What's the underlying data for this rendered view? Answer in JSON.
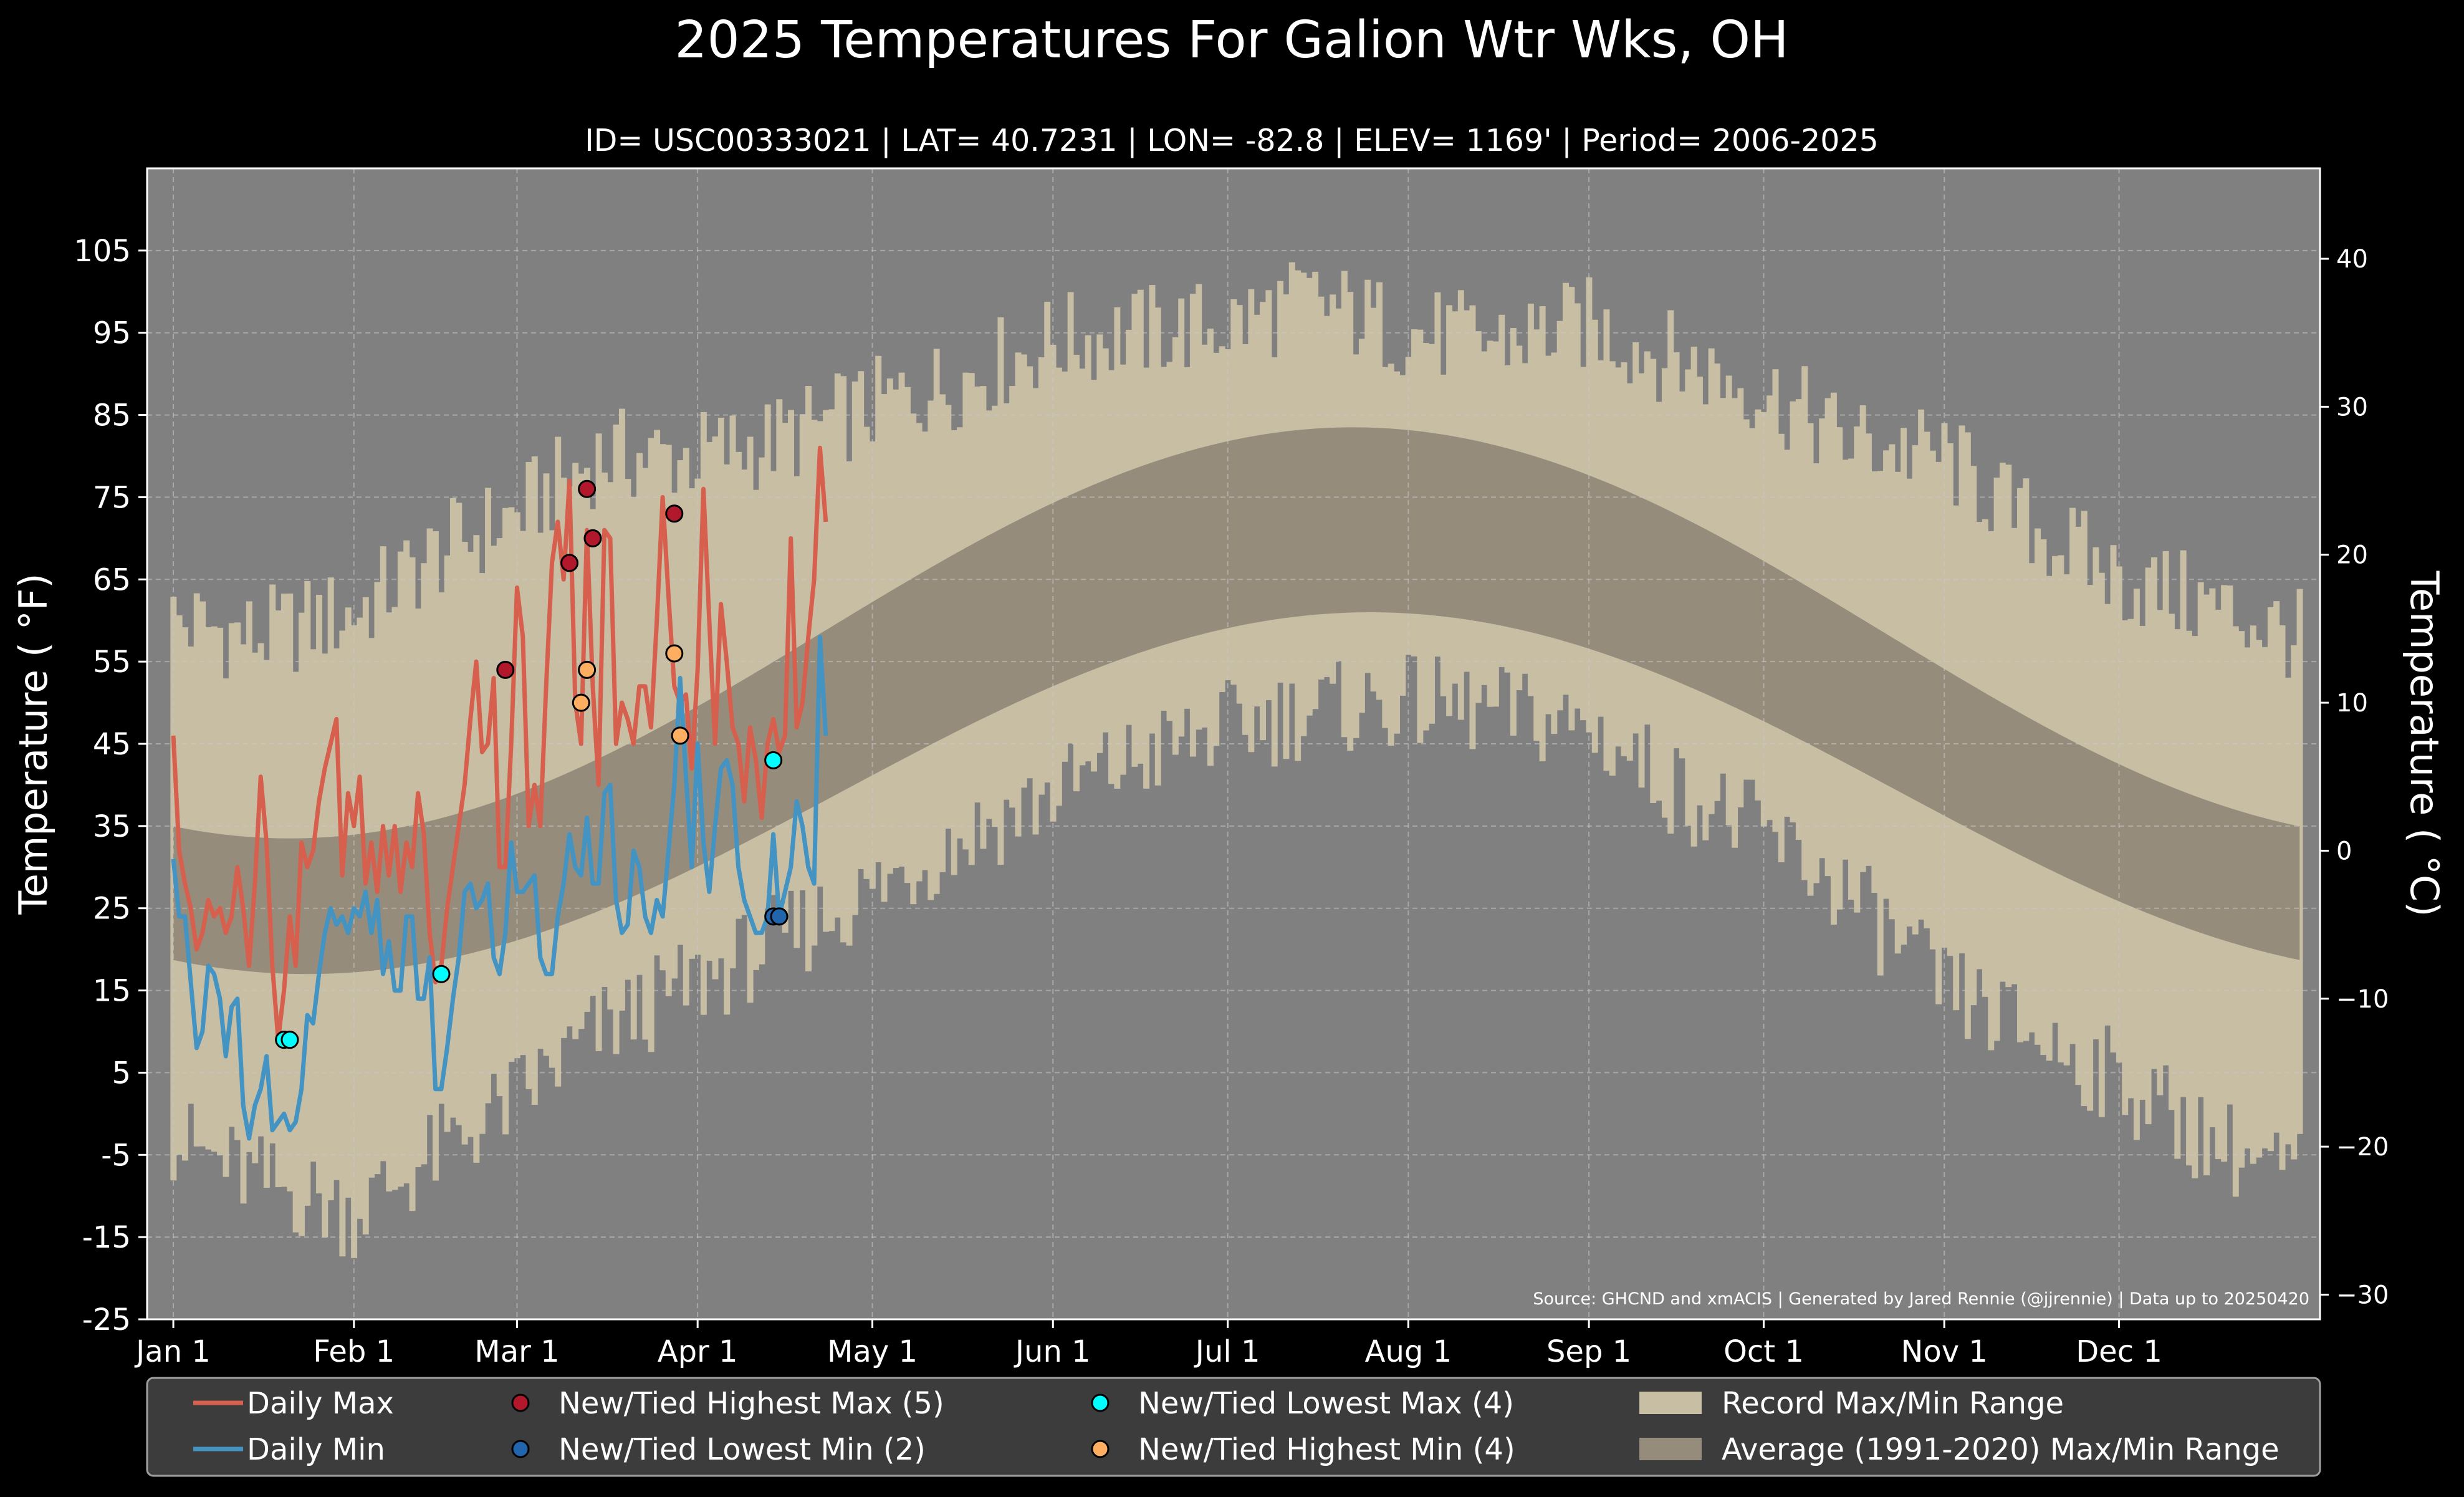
{
  "chart_data": {
    "type": "area",
    "title": "2025 Temperatures For Galion Wtr Wks, OH",
    "subtitle": "ID= USC00333021 | LAT= 40.7231 | LON= -82.8 | ELEV= 1169' | Period= 2006-2025",
    "ylabel": "Temperature ( $^∘$F)",
    "ylabel_left": "Temperature ( °F)",
    "ylabel_right": "Temperature ( °C)",
    "ylim": [
      -25,
      115
    ],
    "yticks": [
      "105",
      "95",
      "85",
      "75",
      "65",
      "55",
      "45",
      "35",
      "25",
      "15",
      "5",
      "-5",
      "-15",
      "-25"
    ],
    "yticks_right": [
      "40",
      "30",
      "20",
      "10",
      "0",
      "−10",
      "−20",
      "−30"
    ],
    "xticks": [
      "Jan 1",
      "Feb 1",
      "Mar 1",
      "Apr 1",
      "May 1",
      "Jun 1",
      "Jul 1",
      "Aug 1",
      "Sep 1",
      "Oct 1",
      "Nov 1",
      "Dec 1"
    ],
    "xtick_days": [
      1,
      32,
      60,
      91,
      121,
      152,
      182,
      213,
      244,
      274,
      305,
      335
    ],
    "xlim": [
      -3.5,
      369.5
    ],
    "grid": true,
    "legend_position": "bottom",
    "source": "Source: GHCND and xmACIS | Generated by Jared Rennie (@jjrennie) | Data up to 20250420",
    "colors": {
      "background": "#000000",
      "plot_bg": "#808080",
      "record": "#c8bea4",
      "average": "#968c7c",
      "daily_max": "#d6604d",
      "daily_min": "#4393c3",
      "highest_max": "#b2182b",
      "lowest_min": "#2166ac",
      "lowest_max": "#00ffff",
      "highest_min": "#fdae61",
      "text": "#ffffff",
      "legend_bg": "#3c3c3c"
    },
    "record_max_anchors": [
      [
        1,
        60
      ],
      [
        15,
        58
      ],
      [
        32,
        61
      ],
      [
        46,
        68
      ],
      [
        60,
        73
      ],
      [
        74,
        80
      ],
      [
        91,
        80
      ],
      [
        105,
        82
      ],
      [
        121,
        86
      ],
      [
        135,
        89
      ],
      [
        152,
        94
      ],
      [
        166,
        95
      ],
      [
        182,
        96
      ],
      [
        196,
        99
      ],
      [
        213,
        95
      ],
      [
        227,
        94
      ],
      [
        244,
        96
      ],
      [
        258,
        92
      ],
      [
        274,
        88
      ],
      [
        288,
        82
      ],
      [
        305,
        80
      ],
      [
        319,
        72
      ],
      [
        335,
        65
      ],
      [
        350,
        62
      ],
      [
        366,
        58
      ]
    ],
    "record_min_anchors": [
      [
        1,
        -3
      ],
      [
        15,
        -8
      ],
      [
        32,
        -12
      ],
      [
        46,
        -5
      ],
      [
        60,
        2
      ],
      [
        74,
        10
      ],
      [
        91,
        16
      ],
      [
        105,
        21
      ],
      [
        121,
        27
      ],
      [
        135,
        33
      ],
      [
        152,
        39
      ],
      [
        166,
        43
      ],
      [
        182,
        47
      ],
      [
        196,
        49
      ],
      [
        213,
        50
      ],
      [
        227,
        49
      ],
      [
        244,
        47
      ],
      [
        258,
        40
      ],
      [
        274,
        34
      ],
      [
        288,
        27
      ],
      [
        305,
        15
      ],
      [
        319,
        10
      ],
      [
        335,
        4
      ],
      [
        350,
        -3
      ],
      [
        366,
        -8
      ]
    ],
    "series": [
      {
        "name": "Daily Max",
        "x": [
          1,
          2,
          3,
          4,
          5,
          6,
          7,
          8,
          9,
          10,
          11,
          12,
          13,
          14,
          15,
          16,
          17,
          18,
          19,
          20,
          21,
          22,
          23,
          24,
          25,
          26,
          27,
          28,
          29,
          30,
          31,
          32,
          33,
          34,
          35,
          36,
          37,
          38,
          39,
          40,
          41,
          42,
          43,
          44,
          45,
          46,
          47,
          48,
          49,
          50,
          51,
          52,
          53,
          54,
          55,
          56,
          57,
          58,
          59,
          60,
          61,
          62,
          63,
          64,
          65,
          66,
          67,
          68,
          69,
          70,
          71,
          72,
          73,
          74,
          75,
          76,
          77,
          78,
          79,
          80,
          81,
          82,
          83,
          84,
          85,
          86,
          87,
          88,
          89,
          90,
          91,
          92,
          93,
          94,
          95,
          96,
          97,
          98,
          99,
          100,
          101,
          102,
          103,
          104,
          105,
          106,
          107,
          108,
          109,
          110
        ],
        "values": [
          46,
          32,
          28,
          25,
          20,
          22,
          26,
          24,
          25,
          22,
          24,
          30,
          25,
          18,
          28,
          41,
          33,
          18,
          9,
          15,
          24,
          18,
          33,
          30,
          32,
          38,
          42,
          45,
          48,
          29,
          39,
          35,
          41,
          28,
          33,
          27,
          35,
          29,
          35,
          27,
          33,
          30,
          39,
          34,
          22,
          16,
          18,
          25,
          30,
          35,
          40,
          48,
          55,
          44,
          45,
          53,
          30,
          30,
          45,
          64,
          58,
          35,
          40,
          35,
          52,
          67,
          72,
          65,
          77,
          50,
          45,
          71,
          52,
          40,
          71,
          70,
          45,
          50,
          48,
          45,
          52,
          52,
          47,
          60,
          75,
          63,
          52,
          50,
          51,
          42,
          54,
          76,
          60,
          45,
          62,
          55,
          47,
          45,
          38,
          47,
          43,
          36,
          45,
          48,
          44,
          46,
          70,
          47,
          50,
          58
        ],
        "extra_values": [
          65,
          81,
          72
        ]
      },
      {
        "name": "Daily Min",
        "x": [
          1,
          2,
          3,
          4,
          5,
          6,
          7,
          8,
          9,
          10,
          11,
          12,
          13,
          14,
          15,
          16,
          17,
          18,
          19,
          20,
          21,
          22,
          23,
          24,
          25,
          26,
          27,
          28,
          29,
          30,
          31,
          32,
          33,
          34,
          35,
          36,
          37,
          38,
          39,
          40,
          41,
          42,
          43,
          44,
          45,
          46,
          47,
          48,
          49,
          50,
          51,
          52,
          53,
          54,
          55,
          56,
          57,
          58,
          59,
          60,
          61,
          62,
          63,
          64,
          65,
          66,
          67,
          68,
          69,
          70,
          71,
          72,
          73,
          74,
          75,
          76,
          77,
          78,
          79,
          80,
          81,
          82,
          83,
          84,
          85,
          86,
          87,
          88,
          89,
          90,
          91,
          92,
          93,
          94,
          95,
          96,
          97,
          98,
          99,
          100,
          101,
          102,
          103,
          104,
          105,
          106,
          107,
          108,
          109,
          110,
          111,
          112,
          113
        ],
        "values": [
          31,
          24,
          24,
          16,
          8,
          10,
          18,
          17,
          14,
          7,
          13,
          14,
          1,
          -3,
          1,
          3,
          7,
          -2,
          -1,
          0,
          -2,
          -1,
          3,
          12,
          11,
          17,
          22,
          25,
          23,
          24,
          22,
          25,
          24,
          27,
          22,
          26,
          17,
          21,
          15,
          15,
          24,
          24,
          14,
          14,
          19,
          3,
          3,
          8,
          14,
          19,
          27,
          28,
          25,
          26,
          28,
          19,
          17,
          22,
          33,
          27,
          27,
          28,
          29,
          19,
          17,
          17,
          24,
          28,
          34,
          30,
          29,
          36,
          28,
          28,
          39,
          40,
          26,
          22,
          23,
          32,
          30,
          24,
          22,
          26,
          24,
          32,
          40,
          53,
          41,
          30,
          45,
          33,
          27,
          35,
          42,
          43,
          40,
          30,
          26,
          24,
          22,
          22,
          24,
          34,
          24,
          27,
          30,
          38,
          35,
          30,
          28,
          58,
          46
        ]
      }
    ],
    "markers": {
      "highest_max": [
        [
          58,
          54
        ],
        [
          69,
          67
        ],
        [
          72,
          76
        ],
        [
          73,
          70
        ],
        [
          87,
          73
        ]
      ],
      "lowest_min": [
        [
          104,
          24
        ],
        [
          105,
          24
        ]
      ],
      "lowest_max": [
        [
          20,
          9
        ],
        [
          21,
          9
        ],
        [
          47,
          17
        ],
        [
          104,
          43
        ]
      ],
      "highest_min": [
        [
          71,
          50
        ],
        [
          72,
          54
        ],
        [
          87,
          56
        ],
        [
          88,
          46
        ]
      ]
    },
    "legend": [
      {
        "label": "Daily Max",
        "kind": "line",
        "color": "#d6604d"
      },
      {
        "label": "Daily Min",
        "kind": "line",
        "color": "#4393c3"
      },
      {
        "label": "New/Tied Highest Max (5)",
        "kind": "dot",
        "color": "#b2182b"
      },
      {
        "label": "New/Tied Lowest Min (2)",
        "kind": "dot",
        "color": "#2166ac"
      },
      {
        "label": "New/Tied Lowest Max (4)",
        "kind": "dot",
        "color": "#00ffff"
      },
      {
        "label": "New/Tied Highest Min (4)",
        "kind": "dot",
        "color": "#fdae61"
      },
      {
        "label": "Record Max/Min Range",
        "kind": "patch",
        "color": "#c8bea4"
      },
      {
        "label": "Average (1991-2020) Max/Min Range",
        "kind": "patch",
        "color": "#968c7c"
      }
    ]
  }
}
